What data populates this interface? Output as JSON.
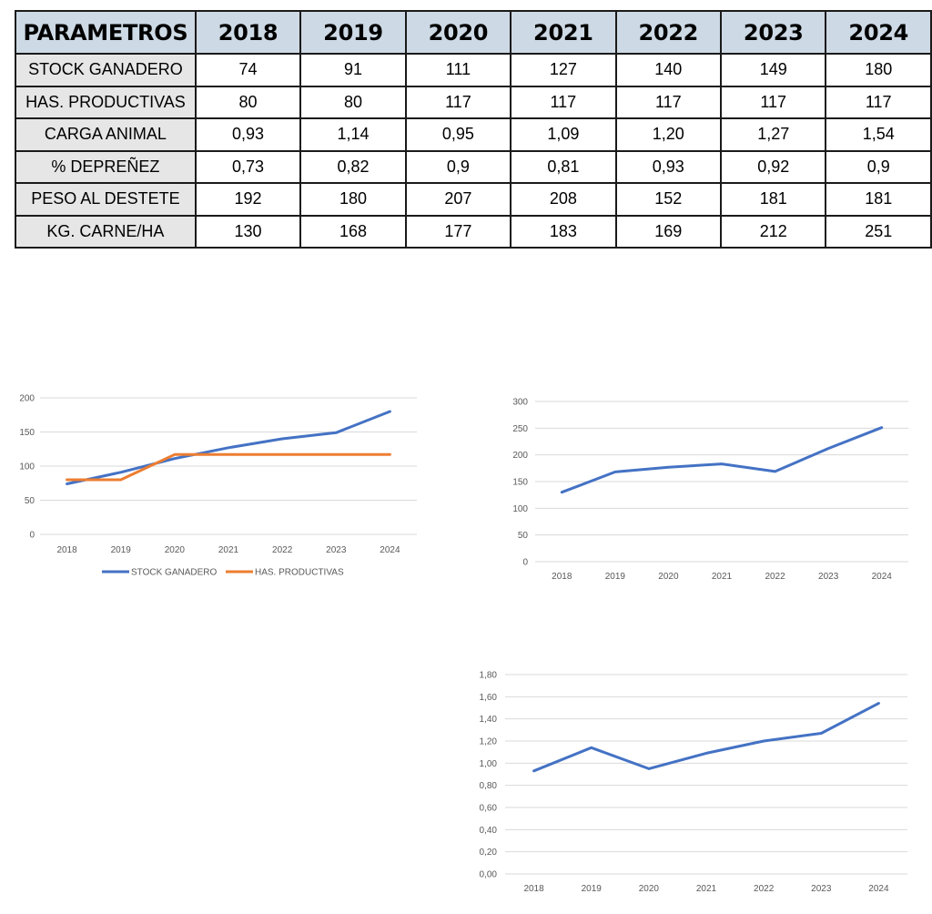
{
  "table": {
    "header": [
      "PARAMETROS",
      "2018",
      "2019",
      "2020",
      "2021",
      "2022",
      "2023",
      "2024"
    ],
    "rows": [
      [
        "STOCK GANADERO",
        "74",
        "91",
        "111",
        "127",
        "140",
        "149",
        "180"
      ],
      [
        "HAS. PRODUCTIVAS",
        "80",
        "80",
        "117",
        "117",
        "117",
        "117",
        "117"
      ],
      [
        "CARGA ANIMAL",
        "0,93",
        "1,14",
        "0,95",
        "1,09",
        "1,20",
        "1,27",
        "1,54"
      ],
      [
        "% DEPREÑEZ",
        "0,73",
        "0,82",
        "0,9",
        "0,81",
        "0,93",
        "0,92",
        "0,9"
      ],
      [
        "PESO AL DESTETE",
        "192",
        "180",
        "207",
        "208",
        "152",
        "181",
        "181"
      ],
      [
        "KG. CARNE/HA",
        "130",
        "168",
        "177",
        "183",
        "169",
        "212",
        "251"
      ]
    ]
  },
  "chart_data": [
    {
      "type": "line",
      "title": "",
      "xlabel": "",
      "ylabel": "",
      "x": [
        "2018",
        "2019",
        "2020",
        "2021",
        "2022",
        "2023",
        "2024"
      ],
      "yticks": [
        "0",
        "50",
        "100",
        "150",
        "200"
      ],
      "ylim": [
        0,
        200
      ],
      "grid": true,
      "legend": "bottom",
      "series": [
        {
          "name": "STOCK GANADERO",
          "values": [
            74,
            91,
            111,
            127,
            140,
            149,
            180
          ],
          "color": "#4472c4"
        },
        {
          "name": "HAS. PRODUCTIVAS",
          "values": [
            80,
            80,
            117,
            117,
            117,
            117,
            117
          ],
          "color": "#ed7d31"
        }
      ]
    },
    {
      "type": "line",
      "title": "",
      "xlabel": "",
      "ylabel": "",
      "x": [
        "2018",
        "2019",
        "2020",
        "2021",
        "2022",
        "2023",
        "2024"
      ],
      "yticks": [
        "0",
        "50",
        "100",
        "150",
        "200",
        "250",
        "300"
      ],
      "ylim": [
        0,
        300
      ],
      "grid": true,
      "legend": "none",
      "series": [
        {
          "values": [
            130,
            168,
            177,
            183,
            169,
            212,
            251
          ],
          "color": "#4472c4"
        }
      ]
    },
    {
      "type": "line",
      "title": "",
      "xlabel": "",
      "ylabel": "",
      "x": [
        "2018",
        "2019",
        "2020",
        "2021",
        "2022",
        "2023",
        "2024"
      ],
      "yticks": [
        "0,00",
        "0,20",
        "0,40",
        "0,60",
        "0,80",
        "1,00",
        "1,20",
        "1,40",
        "1,60",
        "1,80"
      ],
      "ylim": [
        0,
        1.8
      ],
      "grid": true,
      "legend": "none",
      "series": [
        {
          "values": [
            0.93,
            1.14,
            0.95,
            1.09,
            1.2,
            1.27,
            1.54
          ],
          "color": "#4472c4"
        }
      ]
    }
  ]
}
